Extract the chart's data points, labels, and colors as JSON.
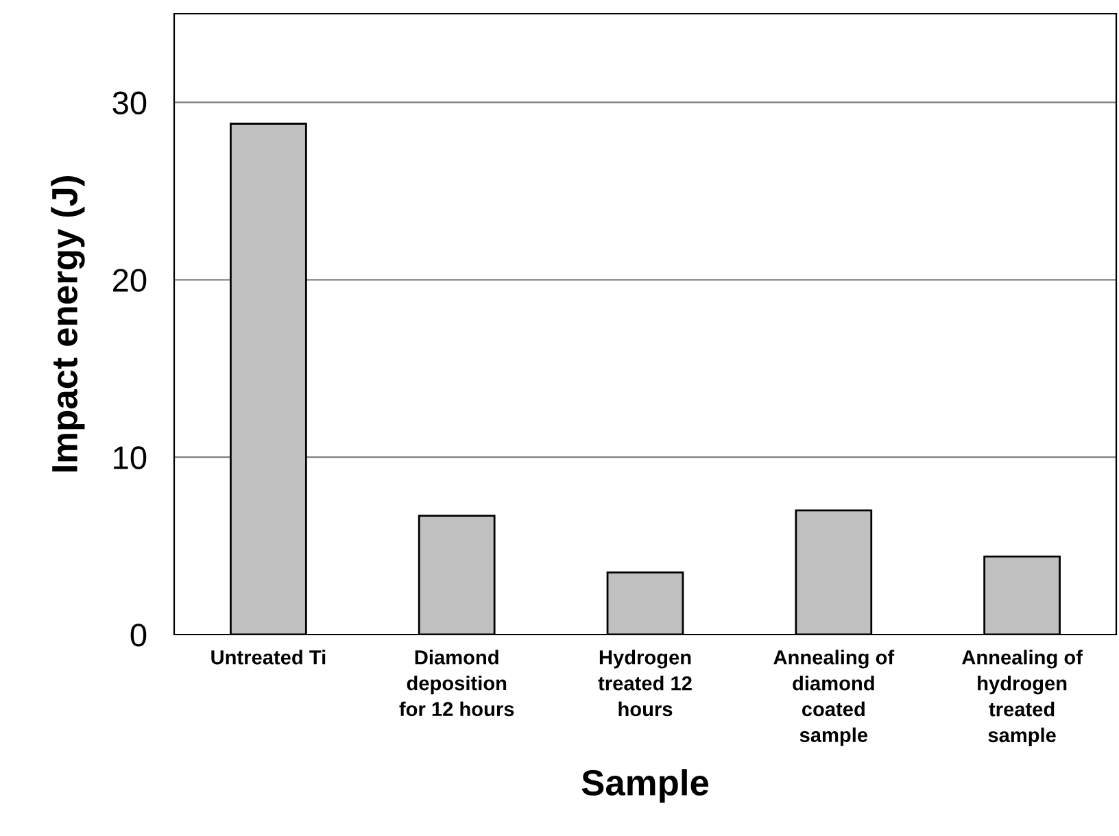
{
  "chart_data": {
    "type": "bar",
    "xlabel": "Sample",
    "ylabel": "Impact energy (J)",
    "categories": [
      "Untreated Ti",
      "Diamond\ndeposition\nfor 12 hours",
      "Hydrogen\ntreated 12\nhours",
      "Annealing of\ndiamond\ncoated\nsample",
      "Annealing of\nhydrogen\ntreated\nsample"
    ],
    "values": [
      28.8,
      6.7,
      3.5,
      7.0,
      4.4
    ],
    "color": "#c0c0c0",
    "ylim": [
      0,
      35
    ],
    "yticks": [
      0,
      10,
      20,
      30
    ],
    "grid": "y"
  }
}
